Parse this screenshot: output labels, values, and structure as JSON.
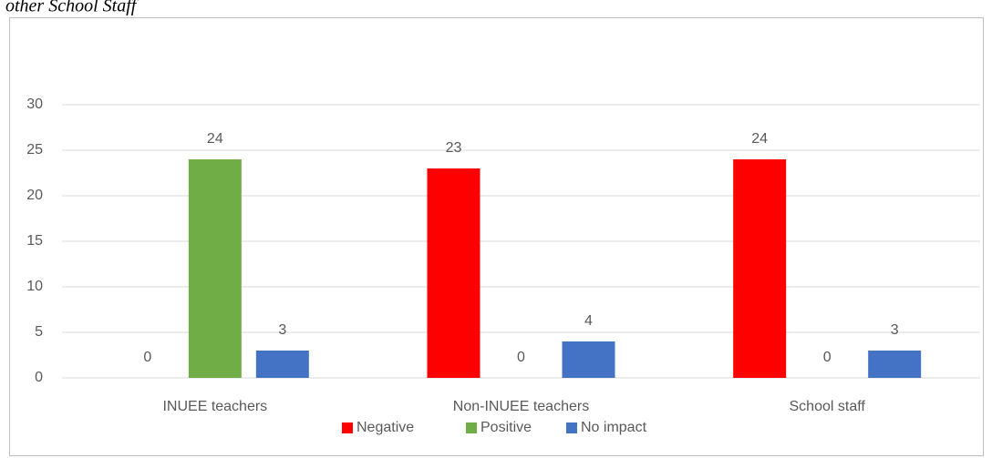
{
  "chart_data": {
    "type": "bar",
    "title": "other School Staff",
    "categories": [
      "INUEE teachers",
      "Non-INUEE teachers",
      "School staff"
    ],
    "series": [
      {
        "name": "Negative",
        "color": "#ff0000",
        "values": [
          0,
          23,
          24
        ]
      },
      {
        "name": "Positive",
        "color": "#70ad47",
        "values": [
          24,
          0,
          0
        ]
      },
      {
        "name": "No impact",
        "color": "#4472c4",
        "values": [
          3,
          4,
          3
        ]
      }
    ],
    "ylim": [
      0,
      30
    ],
    "yticks": [
      0,
      5,
      10,
      15,
      20,
      25,
      30
    ],
    "grid": true,
    "legend": "bottom"
  }
}
